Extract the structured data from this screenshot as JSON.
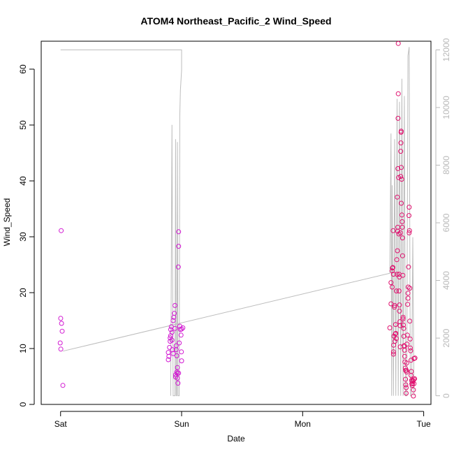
{
  "chart_data": {
    "type": "scatter",
    "title": "ATOM4 Northeast_Pacific_2 Wind_Speed",
    "xlabel": "Date",
    "ylabel": "Wind_Speed",
    "x_ticks": [
      {
        "label": "Sat",
        "value": 0
      },
      {
        "label": "Sun",
        "value": 1
      },
      {
        "label": "Mon",
        "value": 2
      },
      {
        "label": "Tue",
        "value": 3
      }
    ],
    "xlim": [
      -0.16,
      3.06
    ],
    "y_ticks": [
      0,
      10,
      20,
      30,
      40,
      50,
      60
    ],
    "ylim": [
      0,
      65
    ],
    "y2_ticks": [
      0,
      2000,
      4000,
      6000,
      8000,
      10000,
      12000
    ],
    "y2lim": [
      -300,
      12300
    ],
    "grid": false,
    "colors": {
      "points_pink": "#e0106e",
      "points_magenta": "#d21ad2",
      "secondary": "#bdbdbd"
    },
    "series": [
      {
        "color": "points_magenta",
        "axis": "left",
        "points": [
          [
            0.005,
            31.1
          ],
          [
            0.001,
            15.4
          ],
          [
            0.008,
            14.5
          ],
          [
            0.013,
            13.1
          ],
          [
            -0.003,
            11.0
          ],
          [
            0.002,
            9.9
          ],
          [
            0.019,
            3.4
          ],
          [
            0.89,
            9.3
          ],
          [
            0.89,
            8.0
          ],
          [
            0.895,
            8.6
          ],
          [
            0.9,
            10.2
          ],
          [
            0.905,
            11.3
          ],
          [
            0.905,
            11.9
          ],
          [
            0.91,
            12.3
          ],
          [
            0.91,
            13.4
          ],
          [
            0.915,
            13.9
          ],
          [
            0.92,
            11.5
          ],
          [
            0.92,
            12.9
          ],
          [
            0.925,
            9.8
          ],
          [
            0.93,
            9.1
          ],
          [
            0.93,
            15.0
          ],
          [
            0.935,
            15.6
          ],
          [
            0.94,
            16.3
          ],
          [
            0.945,
            17.7
          ],
          [
            0.946,
            13.6
          ],
          [
            0.95,
            5.3
          ],
          [
            0.95,
            4.9
          ],
          [
            0.955,
            10.5
          ],
          [
            0.955,
            9.8
          ],
          [
            0.96,
            8.7
          ],
          [
            0.96,
            5.8
          ],
          [
            0.965,
            5.6
          ],
          [
            0.965,
            4.7
          ],
          [
            0.965,
            6.6
          ],
          [
            0.97,
            3.8
          ],
          [
            0.975,
            5.6
          ],
          [
            0.973,
            24.6
          ],
          [
            0.975,
            28.3
          ],
          [
            0.975,
            30.9
          ],
          [
            0.98,
            11.0
          ],
          [
            0.985,
            14.0
          ],
          [
            0.99,
            13.4
          ],
          [
            0.995,
            12.4
          ],
          [
            0.998,
            9.4
          ],
          [
            1.0,
            13.5
          ],
          [
            1.0,
            7.8
          ],
          [
            1.01,
            13.7
          ]
        ]
      },
      {
        "color": "points_pink",
        "axis": "left",
        "points": [
          [
            2.72,
            13.7
          ],
          [
            2.73,
            18.0
          ],
          [
            2.73,
            21.8
          ],
          [
            2.74,
            21.0
          ],
          [
            2.74,
            23.9
          ],
          [
            2.742,
            24.4
          ],
          [
            2.745,
            24.5
          ],
          [
            2.748,
            31.1
          ],
          [
            2.75,
            23.3
          ],
          [
            2.75,
            9.4
          ],
          [
            2.75,
            9.0
          ],
          [
            2.752,
            10.6
          ],
          [
            2.755,
            12.2
          ],
          [
            2.758,
            17.4
          ],
          [
            2.76,
            17.7
          ],
          [
            2.762,
            11.3
          ],
          [
            2.765,
            12.6
          ],
          [
            2.768,
            14.3
          ],
          [
            2.77,
            12.7
          ],
          [
            2.773,
            11.8
          ],
          [
            2.775,
            20.3
          ],
          [
            2.778,
            25.9
          ],
          [
            2.78,
            23.3
          ],
          [
            2.782,
            37.1
          ],
          [
            2.783,
            27.5
          ],
          [
            2.785,
            31.0
          ],
          [
            2.786,
            31.7
          ],
          [
            2.787,
            42.2
          ],
          [
            2.788,
            51.2
          ],
          [
            2.79,
            55.6
          ],
          [
            2.79,
            64.6
          ],
          [
            2.792,
            40.6
          ],
          [
            2.795,
            30.5
          ],
          [
            2.797,
            23.3
          ],
          [
            2.797,
            20.3
          ],
          [
            2.799,
            22.8
          ],
          [
            2.8,
            17.8
          ],
          [
            2.8,
            16.7
          ],
          [
            2.803,
            14.8
          ],
          [
            2.805,
            14.1
          ],
          [
            2.806,
            10.3
          ],
          [
            2.808,
            30.7
          ],
          [
            2.81,
            40.8
          ],
          [
            2.81,
            45.3
          ],
          [
            2.812,
            46.8
          ],
          [
            2.813,
            48.7
          ],
          [
            2.814,
            48.9
          ],
          [
            2.815,
            36.0
          ],
          [
            2.815,
            42.4
          ],
          [
            2.818,
            40.3
          ],
          [
            2.82,
            33.9
          ],
          [
            2.822,
            32.7
          ],
          [
            2.823,
            31.7
          ],
          [
            2.825,
            29.8
          ],
          [
            2.826,
            26.6
          ],
          [
            2.828,
            23.1
          ],
          [
            2.83,
            15.6
          ],
          [
            2.83,
            15.3
          ],
          [
            2.832,
            14.2
          ],
          [
            2.835,
            13.6
          ],
          [
            2.836,
            12.2
          ],
          [
            2.838,
            10.5
          ],
          [
            2.84,
            10.4
          ],
          [
            2.842,
            9.7
          ],
          [
            2.843,
            8.6
          ],
          [
            2.845,
            7.6
          ],
          [
            2.848,
            6.5
          ],
          [
            2.85,
            6.1
          ],
          [
            2.85,
            4.5
          ],
          [
            2.852,
            3.5
          ],
          [
            2.855,
            3.0
          ],
          [
            2.855,
            2.0
          ],
          [
            2.858,
            6.1
          ],
          [
            2.86,
            5.8
          ],
          [
            2.86,
            7.4
          ],
          [
            2.862,
            10.8
          ],
          [
            2.865,
            12.4
          ],
          [
            2.867,
            17.9
          ],
          [
            2.87,
            19.0
          ],
          [
            2.87,
            19.9
          ],
          [
            2.872,
            21.0
          ],
          [
            2.875,
            24.6
          ],
          [
            2.878,
            33.8
          ],
          [
            2.88,
            35.3
          ],
          [
            2.88,
            30.7
          ],
          [
            2.883,
            31.1
          ],
          [
            2.885,
            20.8
          ],
          [
            2.885,
            14.9
          ],
          [
            2.888,
            11.7
          ],
          [
            2.89,
            10.1
          ],
          [
            2.892,
            9.6
          ],
          [
            2.895,
            7.9
          ],
          [
            2.895,
            5.2
          ],
          [
            2.898,
            5.9
          ],
          [
            2.9,
            4.3
          ],
          [
            2.902,
            3.7
          ],
          [
            2.905,
            3.4
          ],
          [
            2.907,
            3.7
          ],
          [
            2.91,
            4.3
          ],
          [
            2.912,
            4.2
          ],
          [
            2.915,
            2.6
          ],
          [
            2.915,
            1.5
          ],
          [
            2.918,
            4.5
          ],
          [
            2.92,
            3.7
          ],
          [
            2.92,
            8.2
          ],
          [
            2.925,
            4.6
          ],
          [
            2.928,
            8.3
          ]
        ]
      },
      {
        "color": "secondary",
        "axis": "right",
        "line": true,
        "points": [
          [
            0.0,
            12000
          ],
          [
            1.0,
            12000
          ],
          [
            1.0,
            11300
          ],
          [
            0.99,
            10600
          ],
          [
            0.985,
            9700
          ],
          [
            0.98,
            0
          ],
          [
            0.97,
            0
          ],
          [
            0.965,
            8800
          ],
          [
            0.96,
            0
          ],
          [
            0.955,
            0
          ],
          [
            0.95,
            8900
          ],
          [
            0.945,
            0
          ],
          [
            0.93,
            0
          ],
          [
            0.92,
            9400
          ],
          [
            0.91,
            0
          ]
        ]
      },
      {
        "color": "secondary",
        "axis": "right",
        "line": true,
        "points": [
          [
            0.02,
            1550
          ],
          [
            2.72,
            4250
          ],
          [
            2.73,
            9100
          ],
          [
            2.735,
            0
          ],
          [
            2.74,
            7300
          ],
          [
            2.75,
            0
          ],
          [
            2.76,
            8900
          ],
          [
            2.77,
            0
          ],
          [
            2.78,
            10300
          ],
          [
            2.79,
            0
          ],
          [
            2.8,
            10200
          ],
          [
            2.81,
            0
          ],
          [
            2.82,
            11000
          ],
          [
            2.83,
            0
          ],
          [
            2.84,
            10400
          ],
          [
            2.85,
            0
          ],
          [
            2.86,
            0
          ],
          [
            2.87,
            11800
          ],
          [
            2.88,
            12100
          ],
          [
            2.89,
            0
          ],
          [
            2.9,
            0
          ],
          [
            2.91,
            5500
          ],
          [
            2.92,
            0
          ]
        ]
      }
    ]
  }
}
